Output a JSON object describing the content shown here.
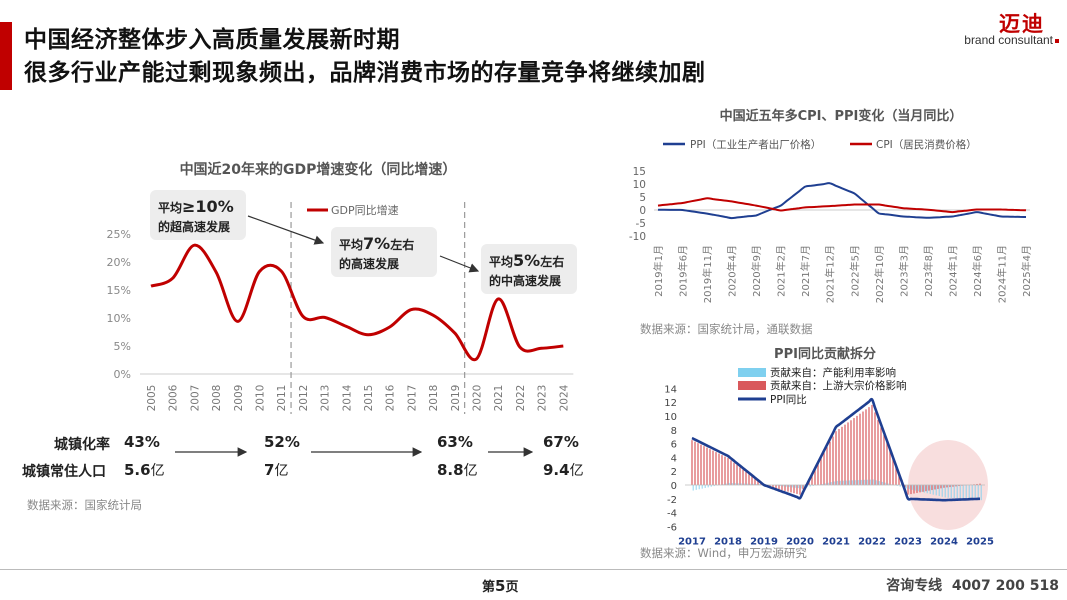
{
  "header": {
    "title_line1": "中国经济整体步入高质量发展新时期",
    "title_line2": "很多行业产能过剩现象频出，品牌消费市场的存量竞争将继续加剧",
    "logo_cn": "迈迪",
    "logo_en": "brand consultant"
  },
  "gdp_chart": {
    "title": "中国近20年来的GDP增速变化（同比增速）",
    "legend": "GDP同比增速",
    "source": "数据来源：国家统计局",
    "callouts": [
      {
        "pre": "平均",
        "num": "≥10%",
        "post": "",
        "line2": "的超高速发展"
      },
      {
        "pre": "平均",
        "num": "7%",
        "post": "左右",
        "line2": "的高速发展"
      },
      {
        "pre": "平均",
        "num": "5%",
        "post": "左右",
        "line2": "的中高速发展"
      }
    ]
  },
  "stats": {
    "urban_rate_label": "城镇化率",
    "urban_pop_label": "城镇常住人口",
    "urban_rates": [
      "43%",
      "52%",
      "63%",
      "67%"
    ],
    "urban_pops": [
      {
        "num": "5.6",
        "unit": "亿"
      },
      {
        "num": "7",
        "unit": "亿"
      },
      {
        "num": "8.8",
        "unit": "亿"
      },
      {
        "num": "9.4",
        "unit": "亿"
      }
    ]
  },
  "cpi_chart": {
    "title": "中国近五年多CPI、PPI变化（当月同比）",
    "source": "数据来源：国家统计局，通联数据"
  },
  "ppi_chart": {
    "title": "PPI同比贡献拆分",
    "source": "数据来源：Wind，申万宏源研究"
  },
  "chart_data": [
    {
      "type": "line",
      "title": "中国近20年来的GDP增速变化（同比增速）",
      "categories": [
        "2005",
        "2006",
        "2007",
        "2008",
        "2009",
        "2010",
        "2011",
        "2012",
        "2013",
        "2014",
        "2015",
        "2016",
        "2017",
        "2018",
        "2019",
        "2020",
        "2021",
        "2022",
        "2023",
        "2024"
      ],
      "series": [
        {
          "name": "GDP同比增速",
          "values": [
            15.7,
            17.1,
            23.0,
            18.2,
            9.4,
            18.3,
            18.4,
            10.3,
            10.1,
            8.5,
            7.0,
            8.4,
            11.5,
            10.5,
            7.3,
            2.7,
            13.4,
            4.8,
            4.6,
            5.0
          ]
        }
      ],
      "ylim": [
        0,
        25
      ],
      "yticks": [
        "0%",
        "5%",
        "10%",
        "15%",
        "20%",
        "25%"
      ],
      "legend": "top-center",
      "grid": false
    },
    {
      "type": "line",
      "title": "中国近五年多CPI、PPI变化（当月同比）",
      "categories": [
        "2019年1月",
        "2019年6月",
        "2019年11月",
        "2020年4月",
        "2020年9月",
        "2021年2月",
        "2021年7月",
        "2021年12月",
        "2022年5月",
        "2022年10月",
        "2023年3月",
        "2023年8月",
        "2024年1月",
        "2024年6月",
        "2024年11月",
        "2025年4月"
      ],
      "series": [
        {
          "name": "PPI（工业生产者出厂价格）",
          "values": [
            0.1,
            0.0,
            -1.4,
            -3.1,
            -2.1,
            1.7,
            9.0,
            10.3,
            6.4,
            -1.3,
            -2.5,
            -3.0,
            -2.5,
            -0.8,
            -2.5,
            -2.7
          ]
        },
        {
          "name": "CPI（居民消费价格）",
          "values": [
            1.7,
            2.7,
            4.5,
            3.3,
            1.7,
            -0.2,
            1.0,
            1.5,
            2.1,
            2.1,
            0.7,
            0.1,
            -0.8,
            0.2,
            0.2,
            -0.1
          ]
        }
      ],
      "ylim": [
        -10,
        15
      ],
      "yticks": [
        "-10",
        "-5",
        "0",
        "5",
        "10",
        "15"
      ],
      "legend": "top"
    },
    {
      "type": "bar",
      "title": "PPI同比贡献拆分",
      "x": [
        "2017",
        "2018",
        "2019",
        "2020",
        "2021",
        "2022",
        "2023",
        "2024",
        "2025"
      ],
      "series": [
        {
          "name": "贡献来自：产能利用率影响",
          "values": [
            -0.8,
            0.3,
            0.1,
            -0.5,
            0.6,
            0.8,
            -0.6,
            -1.8,
            -2.2
          ]
        },
        {
          "name": "贡献来自：上游大宗价格影响",
          "values": [
            6.5,
            3.9,
            -0.1,
            -1.4,
            7.8,
            11.6,
            -1.4,
            -0.4,
            0.2
          ]
        },
        {
          "name": "PPI同比",
          "values": [
            6.8,
            4.2,
            0.0,
            -1.9,
            8.4,
            12.4,
            -2.0,
            -2.2,
            -2.0
          ]
        }
      ],
      "ylim": [
        -6,
        14
      ],
      "yticks": [
        "-6",
        "-4",
        "-2",
        "0",
        "2",
        "4",
        "6",
        "8",
        "10",
        "12",
        "14"
      ],
      "legend": "top-left"
    }
  ]
}
